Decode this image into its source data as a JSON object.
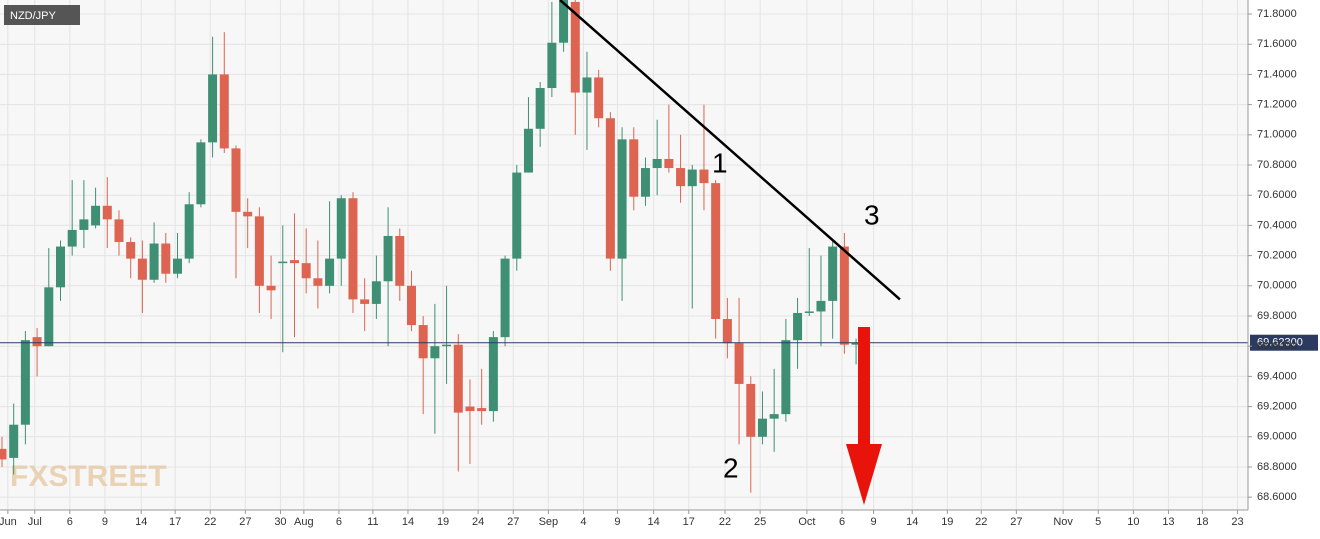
{
  "chart_data": {
    "type": "candlestick",
    "symbol": "NZD/JPY",
    "watermark": "FXSTREET",
    "up_color": "#3f8f75",
    "down_color": "#dc6450",
    "x": [
      0,
      1,
      2,
      3,
      4,
      5,
      6,
      7,
      8,
      9,
      10,
      11,
      12,
      13,
      14,
      15,
      16,
      17,
      18,
      19,
      20,
      21,
      22,
      23,
      24,
      25,
      26,
      27,
      28,
      29,
      30,
      31,
      32,
      33,
      34,
      35,
      36,
      37,
      38,
      39,
      40,
      41,
      42,
      43,
      44,
      45,
      46,
      47,
      48,
      49,
      50,
      51,
      52,
      53,
      54,
      55,
      56,
      57,
      58,
      59,
      60,
      61,
      62,
      63,
      64,
      65,
      66,
      67,
      68,
      69,
      70,
      71,
      72,
      73
    ],
    "open": [
      68.92,
      68.86,
      69.08,
      69.66,
      69.6,
      69.99,
      70.26,
      70.37,
      70.4,
      70.53,
      70.44,
      70.29,
      70.18,
      70.04,
      70.28,
      70.08,
      70.18,
      70.54,
      70.95,
      71.4,
      70.91,
      70.49,
      70.46,
      70.0,
      70.15,
      70.17,
      70.15,
      70.05,
      70.0,
      70.18,
      70.58,
      69.91,
      69.88,
      70.03,
      70.33,
      70.0,
      69.74,
      69.52,
      69.6,
      69.61,
      69.2,
      69.19,
      69.17,
      69.66,
      70.18,
      70.75,
      71.04,
      71.31,
      71.61,
      71.88,
      71.28,
      71.38,
      71.11,
      70.18,
      70.97,
      70.59,
      70.78,
      70.84,
      70.78,
      70.66,
      70.77,
      70.68,
      69.78,
      69.62,
      69.35,
      69.0,
      69.12,
      69.15,
      69.64,
      69.82,
      69.83,
      69.9,
      70.26,
      69.61
    ],
    "high": [
      69.0,
      69.22,
      69.7,
      69.72,
      70.25,
      70.3,
      70.7,
      70.7,
      70.65,
      70.72,
      70.5,
      70.32,
      70.3,
      70.42,
      70.35,
      70.35,
      70.62,
      70.97,
      71.65,
      71.68,
      70.93,
      70.58,
      70.52,
      70.2,
      70.4,
      70.48,
      70.38,
      70.3,
      70.56,
      70.6,
      70.62,
      70.05,
      70.2,
      70.52,
      70.38,
      70.1,
      69.8,
      69.88,
      70.0,
      69.68,
      69.38,
      69.45,
      69.7,
      70.2,
      70.8,
      71.25,
      71.35,
      71.88,
      71.95,
      71.9,
      71.55,
      71.43,
      71.15,
      71.05,
      71.05,
      70.85,
      71.1,
      71.2,
      71.0,
      70.8,
      71.2,
      70.7,
      69.92,
      69.92,
      69.4,
      69.3,
      69.45,
      69.78,
      69.92,
      70.25,
      70.2,
      70.3,
      70.35,
      69.65
    ],
    "low": [
      68.8,
      68.75,
      68.95,
      69.4,
      69.6,
      69.9,
      70.2,
      70.25,
      70.38,
      70.25,
      70.2,
      70.05,
      69.82,
      70.02,
      70.02,
      70.05,
      70.15,
      70.52,
      70.85,
      70.88,
      70.05,
      70.25,
      69.82,
      69.78,
      69.56,
      69.66,
      69.95,
      69.85,
      69.95,
      70.0,
      69.82,
      69.7,
      69.78,
      69.6,
      69.9,
      69.7,
      69.15,
      69.02,
      69.35,
      68.77,
      68.82,
      69.08,
      69.1,
      69.6,
      70.1,
      70.75,
      70.92,
      71.25,
      71.55,
      71.0,
      70.9,
      71.05,
      70.1,
      69.9,
      70.5,
      70.53,
      70.6,
      70.75,
      70.55,
      69.85,
      70.5,
      69.65,
      69.52,
      68.95,
      68.63,
      68.95,
      68.9,
      69.1,
      69.45,
      69.8,
      69.6,
      69.65,
      69.55,
      69.48
    ],
    "close": [
      68.85,
      69.08,
      69.64,
      69.6,
      69.99,
      70.26,
      70.37,
      70.44,
      70.53,
      70.44,
      70.29,
      70.18,
      70.04,
      70.28,
      70.08,
      70.18,
      70.54,
      70.95,
      71.4,
      70.91,
      70.49,
      70.46,
      70.0,
      69.97,
      70.16,
      70.15,
      70.05,
      70.0,
      70.18,
      70.58,
      69.91,
      69.88,
      70.03,
      70.33,
      70.0,
      69.74,
      69.52,
      69.6,
      69.61,
      69.16,
      69.17,
      69.17,
      69.66,
      70.18,
      70.75,
      71.04,
      71.31,
      71.61,
      71.9,
      71.28,
      71.38,
      71.11,
      70.18,
      70.97,
      70.59,
      70.78,
      70.84,
      70.78,
      70.66,
      70.77,
      70.68,
      69.78,
      69.62,
      69.35,
      69.0,
      69.12,
      69.15,
      69.64,
      69.82,
      69.83,
      69.9,
      70.26,
      69.61,
      69.623
    ],
    "xlim": [
      -0.17,
      106.5
    ],
    "ylim": [
      68.515,
      71.893
    ],
    "xticks": [
      {
        "value": 0.5,
        "label": "Jun"
      },
      {
        "value": 2.8,
        "label": "Jul"
      },
      {
        "value": 5.8,
        "label": "6"
      },
      {
        "value": 8.8,
        "label": "9"
      },
      {
        "value": 11.9,
        "label": "14"
      },
      {
        "value": 14.8,
        "label": "17"
      },
      {
        "value": 17.8,
        "label": "22"
      },
      {
        "value": 20.8,
        "label": "27"
      },
      {
        "value": 23.8,
        "label": "30"
      },
      {
        "value": 25.8,
        "label": "Aug"
      },
      {
        "value": 28.8,
        "label": "6"
      },
      {
        "value": 31.7,
        "label": "11"
      },
      {
        "value": 34.7,
        "label": "14"
      },
      {
        "value": 37.7,
        "label": "19"
      },
      {
        "value": 40.7,
        "label": "24"
      },
      {
        "value": 43.7,
        "label": "27"
      },
      {
        "value": 46.7,
        "label": "Sep"
      },
      {
        "value": 49.7,
        "label": "4"
      },
      {
        "value": 52.6,
        "label": "9"
      },
      {
        "value": 55.7,
        "label": "14"
      },
      {
        "value": 58.7,
        "label": "17"
      },
      {
        "value": 61.8,
        "label": "22"
      },
      {
        "value": 64.8,
        "label": "25"
      },
      {
        "value": 68.8,
        "label": "Oct"
      },
      {
        "value": 71.8,
        "label": "6"
      },
      {
        "value": 74.5,
        "label": "9"
      },
      {
        "value": 77.8,
        "label": "14"
      },
      {
        "value": 80.8,
        "label": "19"
      },
      {
        "value": 83.7,
        "label": "22"
      },
      {
        "value": 86.7,
        "label": "27"
      },
      {
        "value": 90.7,
        "label": "Nov"
      },
      {
        "value": 93.7,
        "label": "5"
      },
      {
        "value": 96.7,
        "label": "10"
      },
      {
        "value": 99.7,
        "label": "13"
      },
      {
        "value": 102.6,
        "label": "18"
      },
      {
        "value": 105.6,
        "label": "23"
      }
    ],
    "yticks": [
      {
        "value": 68.6,
        "label": "68.6000"
      },
      {
        "value": 68.8,
        "label": "68.8000"
      },
      {
        "value": 69.0,
        "label": "69.0000"
      },
      {
        "value": 69.2,
        "label": "69.2000"
      },
      {
        "value": 69.4,
        "label": "69.4000"
      },
      {
        "value": 69.6,
        "label": "69.6000"
      },
      {
        "value": 69.8,
        "label": "69.8000"
      },
      {
        "value": 70.0,
        "label": "70.0000"
      },
      {
        "value": 70.2,
        "label": "70.2000"
      },
      {
        "value": 70.4,
        "label": "70.4000"
      },
      {
        "value": 70.6,
        "label": "70.6000"
      },
      {
        "value": 70.8,
        "label": "70.8000"
      },
      {
        "value": 71.0,
        "label": "71.0000"
      },
      {
        "value": 71.2,
        "label": "71.2000"
      },
      {
        "value": 71.4,
        "label": "71.4000"
      },
      {
        "value": 71.6,
        "label": "71.6000"
      },
      {
        "value": 71.8,
        "label": "71.8000"
      }
    ],
    "grid": true,
    "price_line": {
      "value": 69.623,
      "label": "69.62300"
    },
    "trendline": {
      "x": [
        47.7,
        76.75
      ],
      "y": [
        71.893,
        69.91
      ]
    },
    "annotations": [
      "1",
      "2",
      "3"
    ]
  }
}
